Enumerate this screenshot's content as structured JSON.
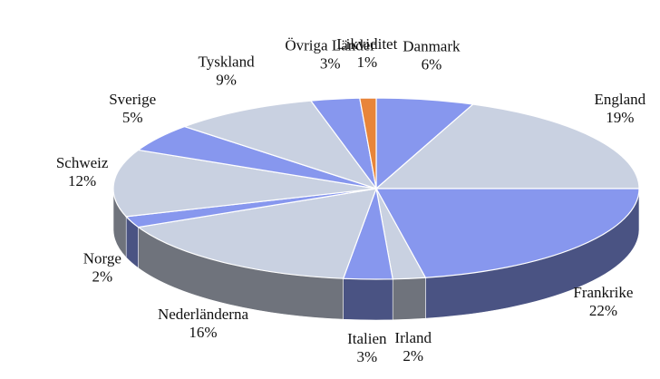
{
  "chart_data": {
    "type": "pie3d",
    "categories": [
      "Danmark",
      "England",
      "Frankrike",
      "Irland",
      "Italien",
      "Nederländerna",
      "Norge",
      "Schweiz",
      "Sverige",
      "Tyskland",
      "Övriga Länder",
      "Likviditet"
    ],
    "values": [
      6,
      19,
      22,
      2,
      3,
      16,
      2,
      12,
      5,
      9,
      3,
      1
    ],
    "value_labels": [
      "6%",
      "19%",
      "22%",
      "2%",
      "3%",
      "16%",
      "2%",
      "12%",
      "5%",
      "9%",
      "3%",
      "1%"
    ],
    "colors": [
      "#8797ee",
      "#c9d1e1",
      "#8797ee",
      "#c9d1e1",
      "#8797ee",
      "#c9d1e1",
      "#8797ee",
      "#c9d1e1",
      "#8797ee",
      "#c9d1e1",
      "#8797ee",
      "#e8853a"
    ]
  }
}
